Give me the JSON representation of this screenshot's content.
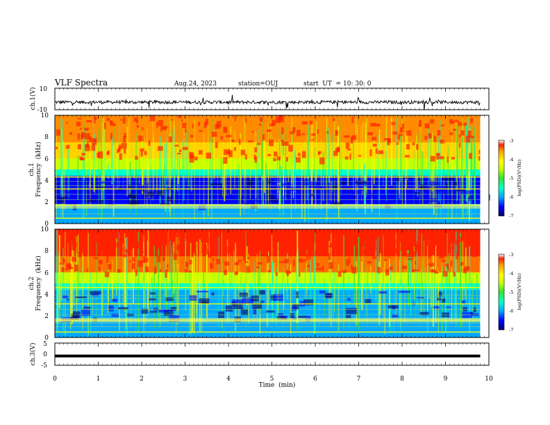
{
  "header": {
    "title": "VLF Spectra",
    "date": "Aug.24, 2023",
    "station": "station=OUJ",
    "start_ut_label": "start  UT  =",
    "start_ut_value": "10: 30: 0"
  },
  "chart_data": [
    {
      "type": "line",
      "ylabel": "ch.1(V)",
      "ylim": [
        -10,
        10
      ],
      "y_ticks": [
        "10",
        "-10"
      ],
      "xlim": [
        0,
        10
      ],
      "series": [
        {
          "baseline": -3,
          "noise_amplitude": 1.5,
          "color": "#000000"
        }
      ]
    },
    {
      "type": "heatmap",
      "ylabel_line1": "ch.1",
      "ylabel_line2": "Frequency  (kHz)",
      "ylim": [
        0,
        10
      ],
      "y_ticks": [
        "0",
        "2",
        "4",
        "6",
        "8",
        "10"
      ],
      "xlim": [
        0,
        10
      ],
      "colorbar": {
        "label": "log(PSD)(V²/Hz)",
        "ticks": [
          "-3",
          "-4",
          "-5",
          "-6",
          "-7"
        ],
        "range": [
          -7,
          -3
        ]
      }
    },
    {
      "type": "heatmap",
      "ylabel_line1": "ch.2",
      "ylabel_line2": "Frequency  (kHz)",
      "ylim": [
        0,
        10
      ],
      "y_ticks": [
        "0",
        "2",
        "4",
        "6",
        "8",
        "10"
      ],
      "xlim": [
        0,
        10
      ],
      "colorbar": {
        "label": "log(PSD)(V²/Hz)",
        "ticks": [
          "-3",
          "-4",
          "-5",
          "-6",
          "-7"
        ],
        "range": [
          -7,
          -3
        ]
      }
    },
    {
      "type": "line",
      "ylabel": "ch.3(V)",
      "ylim": [
        -5,
        5
      ],
      "y_ticks": [
        "5",
        "0",
        "-5"
      ],
      "xlim": [
        0,
        10
      ],
      "series": [
        {
          "baseline": -0.8,
          "color": "#000000"
        }
      ]
    }
  ],
  "x_axis": {
    "label": "Time  (min)",
    "ticks": [
      "0",
      "1",
      "2",
      "3",
      "4",
      "5",
      "6",
      "7",
      "8",
      "9",
      "10"
    ],
    "data_end": 9.8
  },
  "colormap": [
    "#00006e",
    "#0000ff",
    "#00aaff",
    "#00ffc8",
    "#32e632",
    "#c8ff00",
    "#ffff00",
    "#ffa500",
    "#ff2200"
  ]
}
